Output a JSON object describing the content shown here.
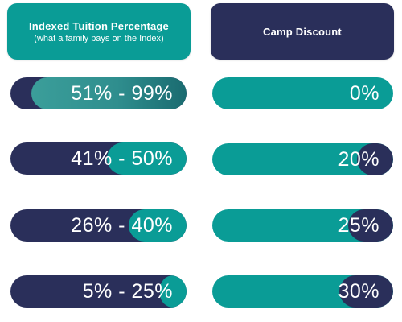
{
  "headers": {
    "tuition_title": "Indexed Tuition Percentage",
    "tuition_subtitle": "(what a family pays on the Index)",
    "discount_title": "Camp Discount"
  },
  "rows": [
    {
      "tuition_range": "51% - 99%",
      "tuition_fill_fraction": 0.88,
      "discount": "0%",
      "discount_fill_fraction": 0.0
    },
    {
      "tuition_range": "41% - 50%",
      "tuition_fill_fraction": 0.45,
      "discount": "20%",
      "discount_fill_fraction": 0.2
    },
    {
      "tuition_range": "26% - 40%",
      "tuition_fill_fraction": 0.33,
      "discount": "25%",
      "discount_fill_fraction": 0.25
    },
    {
      "tuition_range": "5% - 25%",
      "tuition_fill_fraction": 0.15,
      "discount": "30%",
      "discount_fill_fraction": 0.3
    }
  ],
  "colors": {
    "teal": "#0a9c96",
    "navy": "#2a2f5a",
    "background": "#ffffff"
  }
}
